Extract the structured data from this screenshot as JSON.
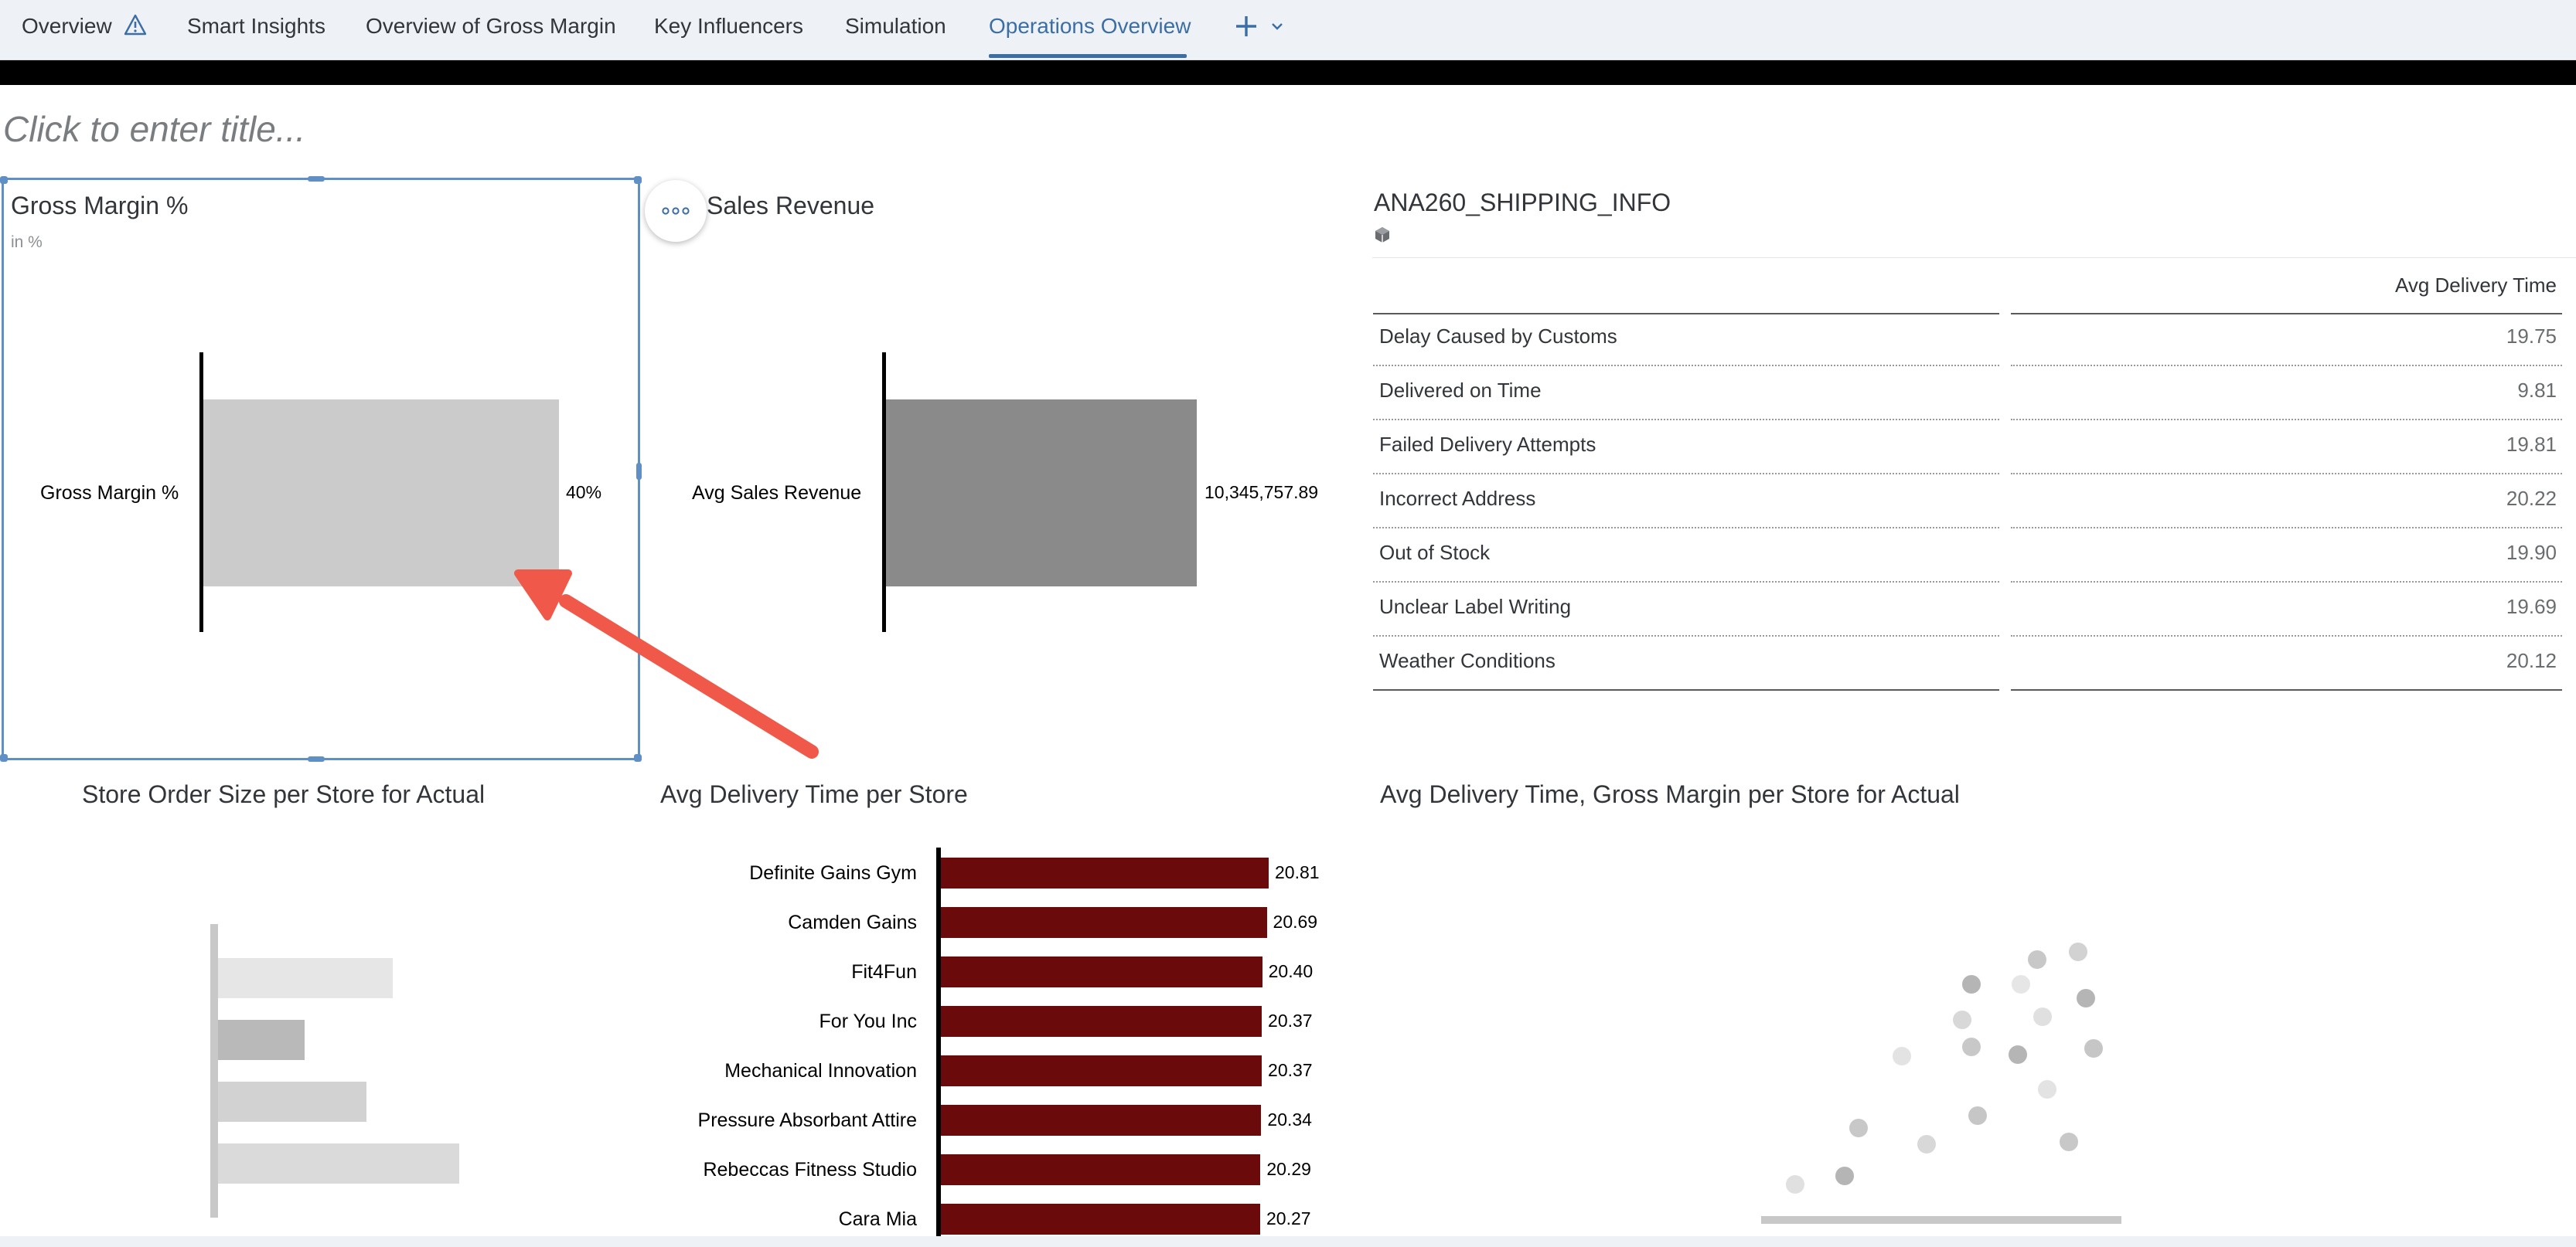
{
  "tabs": [
    {
      "label": "Overview",
      "has_warning": true
    },
    {
      "label": "Smart Insights"
    },
    {
      "label": "Overview of Gross Margin"
    },
    {
      "label": "Key Influencers"
    },
    {
      "label": "Simulation"
    },
    {
      "label": "Operations Overview",
      "active": true
    }
  ],
  "add_tab_icon": "plus-icon",
  "add_tab_dropdown_icon": "chevron-down-icon",
  "page_title_placeholder": "Click to enter title...",
  "colors": {
    "accent": "#3b6ea5",
    "selection": "#5f8fc4",
    "gross_bar": "#cbcbcc",
    "revenue_bar": "#8a8a8a",
    "delivery_bar": "#6b0a0a",
    "arrow": "#f0584a"
  },
  "gross_margin": {
    "title": "Gross Margin %",
    "subtitle": "in %",
    "row_label": "Gross Margin %",
    "value_label": "40%",
    "value": 40
  },
  "sales_revenue": {
    "title": "Sales Revenue",
    "row_label": "Avg Sales Revenue",
    "value_label": "10,345,757.89",
    "value": 10345757.89
  },
  "shipping_table": {
    "title": "ANA260_SHIPPING_INFO",
    "model_icon": "cube-icon",
    "column_header": "Avg Delivery Time",
    "rows": [
      {
        "label": "Delay Caused by Customs",
        "value": "19.75"
      },
      {
        "label": "Delivered on Time",
        "value": "9.81"
      },
      {
        "label": "Failed Delivery Attempts",
        "value": "19.81"
      },
      {
        "label": "Incorrect Address",
        "value": "20.22"
      },
      {
        "label": "Out of Stock",
        "value": "19.90"
      },
      {
        "label": "Unclear Label Writing",
        "value": "19.69"
      },
      {
        "label": "Weather Conditions",
        "value": "20.12"
      }
    ]
  },
  "store_order_size": {
    "title": "Store Order Size per Store for Actual"
  },
  "delivery_chart": {
    "title": "Avg Delivery Time per Store"
  },
  "scatter": {
    "title": "Avg Delivery Time, Gross Margin per Store for Actual"
  },
  "chart_data": [
    {
      "type": "bar",
      "orientation": "horizontal",
      "title": "Gross Margin %",
      "subtitle": "in %",
      "categories": [
        "Gross Margin %"
      ],
      "values": [
        40
      ]
    },
    {
      "type": "bar",
      "orientation": "horizontal",
      "title": "Sales Revenue",
      "categories": [
        "Avg Sales Revenue"
      ],
      "values": [
        10345757.89
      ]
    },
    {
      "type": "table",
      "title": "ANA260_SHIPPING_INFO",
      "columns": [
        "Avg Delivery Time"
      ],
      "rows": [
        "Delay Caused by Customs",
        "Delivered on Time",
        "Failed Delivery Attempts",
        "Incorrect Address",
        "Out of Stock",
        "Unclear Label Writing",
        "Weather Conditions"
      ],
      "values": [
        19.75,
        9.81,
        19.81,
        20.22,
        19.9,
        19.69,
        20.12
      ]
    },
    {
      "type": "bar",
      "orientation": "horizontal",
      "title": "Avg Delivery Time per Store",
      "categories": [
        "Definite Gains Gym",
        "Camden Gains",
        "Fit4Fun",
        "For You Inc",
        "Mechanical Innovation",
        "Pressure Absorbant Attire",
        "Rebeccas Fitness Studio",
        "Cara Mia"
      ],
      "values": [
        20.81,
        20.69,
        20.4,
        20.37,
        20.37,
        20.34,
        20.29,
        20.27
      ],
      "value_labels": [
        "20.81",
        "20.69",
        "20.40",
        "20.37",
        "20.37",
        "20.34",
        "20.29",
        "20.27"
      ]
    }
  ]
}
